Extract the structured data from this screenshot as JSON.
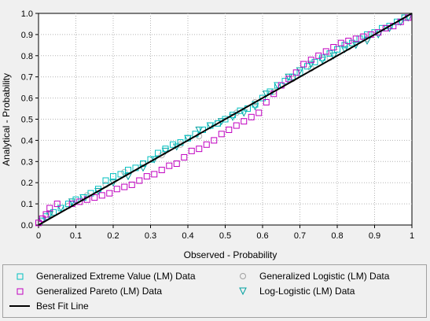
{
  "chart_data": {
    "type": "scatter",
    "xlabel": "Observed - Probability",
    "ylabel": "Analytical - Probability",
    "xlim": [
      0,
      1
    ],
    "ylim": [
      0,
      1
    ],
    "grid": true,
    "x_ticks": [
      "0",
      "0.1",
      "0.2",
      "0.3",
      "0.4",
      "0.5",
      "0.6",
      "0.7",
      "0.8",
      "0.9",
      "1"
    ],
    "y_ticks": [
      "0.0",
      "0.1",
      "0.2",
      "0.3",
      "0.4",
      "0.5",
      "0.6",
      "0.7",
      "0.8",
      "0.9",
      "1.0"
    ],
    "legend_placement": "bottom",
    "series": [
      {
        "name": "Generalized Extreme Value (LM) Data",
        "marker": "square",
        "color": "#00c0c0",
        "x": [
          0.02,
          0.04,
          0.06,
          0.08,
          0.1,
          0.12,
          0.14,
          0.16,
          0.18,
          0.2,
          0.22,
          0.24,
          0.26,
          0.28,
          0.3,
          0.32,
          0.34,
          0.36,
          0.38,
          0.4,
          0.42,
          0.44,
          0.46,
          0.48,
          0.5,
          0.52,
          0.54,
          0.56,
          0.58,
          0.6,
          0.62,
          0.64,
          0.66,
          0.68,
          0.7,
          0.72,
          0.74,
          0.76,
          0.78,
          0.8,
          0.82,
          0.84,
          0.86,
          0.88,
          0.9,
          0.92,
          0.94,
          0.96,
          0.98
        ],
        "y": [
          0.04,
          0.06,
          0.08,
          0.1,
          0.12,
          0.13,
          0.15,
          0.17,
          0.21,
          0.23,
          0.24,
          0.26,
          0.27,
          0.29,
          0.31,
          0.34,
          0.36,
          0.38,
          0.39,
          0.41,
          0.43,
          0.45,
          0.47,
          0.48,
          0.5,
          0.52,
          0.54,
          0.55,
          0.57,
          0.6,
          0.63,
          0.66,
          0.68,
          0.7,
          0.72,
          0.75,
          0.77,
          0.79,
          0.81,
          0.83,
          0.85,
          0.86,
          0.88,
          0.9,
          0.91,
          0.93,
          0.94,
          0.96,
          0.98
        ]
      },
      {
        "name": "Generalized Logistic (LM) Data",
        "marker": "circle",
        "color": "#b0b0b0",
        "x": [
          0.03,
          0.08,
          0.13,
          0.18,
          0.23,
          0.28,
          0.33,
          0.38,
          0.43,
          0.48,
          0.53,
          0.58,
          0.63,
          0.68,
          0.73,
          0.78,
          0.83,
          0.88,
          0.93,
          0.98
        ],
        "y": [
          0.05,
          0.09,
          0.14,
          0.19,
          0.25,
          0.29,
          0.33,
          0.38,
          0.42,
          0.48,
          0.53,
          0.58,
          0.63,
          0.69,
          0.74,
          0.79,
          0.84,
          0.88,
          0.93,
          0.98
        ]
      },
      {
        "name": "Generalized Pareto (LM) Data",
        "marker": "square",
        "color": "#c000c0",
        "x": [
          0.0,
          0.01,
          0.02,
          0.03,
          0.05,
          0.09,
          0.11,
          0.13,
          0.15,
          0.17,
          0.19,
          0.21,
          0.23,
          0.25,
          0.27,
          0.29,
          0.31,
          0.33,
          0.35,
          0.37,
          0.39,
          0.41,
          0.43,
          0.45,
          0.47,
          0.49,
          0.51,
          0.53,
          0.55,
          0.57,
          0.59,
          0.61,
          0.63,
          0.65,
          0.67,
          0.69,
          0.71,
          0.73,
          0.75,
          0.77,
          0.79,
          0.81,
          0.83,
          0.85,
          0.87,
          0.89,
          0.91,
          0.93,
          0.95,
          0.97,
          0.99
        ],
        "y": [
          0.01,
          0.03,
          0.05,
          0.08,
          0.1,
          0.1,
          0.11,
          0.12,
          0.13,
          0.14,
          0.15,
          0.17,
          0.18,
          0.19,
          0.21,
          0.23,
          0.24,
          0.26,
          0.28,
          0.29,
          0.32,
          0.35,
          0.36,
          0.38,
          0.4,
          0.43,
          0.45,
          0.47,
          0.49,
          0.51,
          0.53,
          0.58,
          0.62,
          0.66,
          0.69,
          0.72,
          0.76,
          0.78,
          0.8,
          0.82,
          0.84,
          0.86,
          0.87,
          0.88,
          0.89,
          0.9,
          0.91,
          0.93,
          0.94,
          0.96,
          0.98
        ]
      },
      {
        "name": "Log-Logistic (LM) Data",
        "marker": "triangle-down",
        "color": "#00a0a0",
        "x": [
          0.01,
          0.03,
          0.06,
          0.09,
          0.12,
          0.16,
          0.2,
          0.24,
          0.28,
          0.31,
          0.34,
          0.37,
          0.4,
          0.43,
          0.46,
          0.49,
          0.52,
          0.55,
          0.58,
          0.61,
          0.64,
          0.67,
          0.7,
          0.73,
          0.76,
          0.79,
          0.82,
          0.85,
          0.88,
          0.91,
          0.94,
          0.97,
          0.99
        ],
        "y": [
          0.02,
          0.05,
          0.08,
          0.11,
          0.13,
          0.16,
          0.2,
          0.23,
          0.27,
          0.31,
          0.35,
          0.37,
          0.41,
          0.45,
          0.47,
          0.49,
          0.51,
          0.53,
          0.56,
          0.62,
          0.66,
          0.7,
          0.73,
          0.76,
          0.78,
          0.8,
          0.83,
          0.85,
          0.87,
          0.9,
          0.93,
          0.96,
          0.98
        ]
      }
    ],
    "best_fit": {
      "name": "Best Fit Line",
      "color": "#000000",
      "x": [
        0,
        1
      ],
      "y": [
        0,
        1
      ]
    }
  },
  "legend": {
    "items": [
      {
        "label": "Generalized Extreme Value (LM) Data",
        "marker": "square",
        "color": "#00c0c0"
      },
      {
        "label": "Generalized Logistic (LM) Data",
        "marker": "circle",
        "color": "#b0b0b0"
      },
      {
        "label": "Generalized Pareto (LM) Data",
        "marker": "square",
        "color": "#c000c0"
      },
      {
        "label": "Log-Logistic (LM) Data",
        "marker": "triangle-down",
        "color": "#00a0a0"
      },
      {
        "label": "Best Fit Line",
        "marker": "line",
        "color": "#000000"
      }
    ]
  }
}
